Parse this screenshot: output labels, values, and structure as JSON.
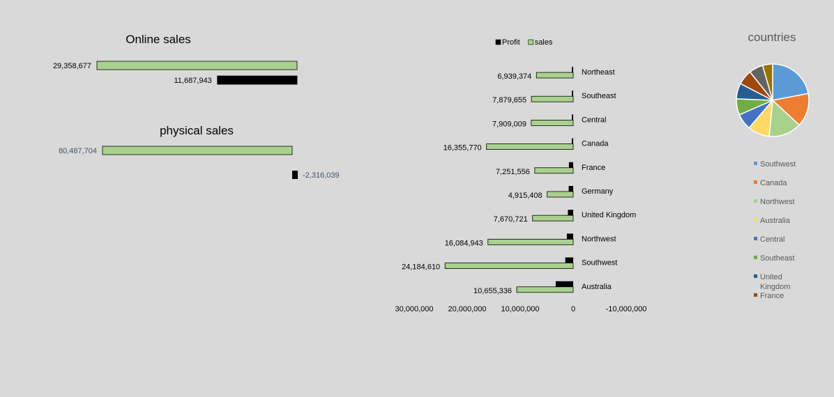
{
  "chart_data": [
    {
      "type": "bar",
      "orientation": "horizontal",
      "title": "Online sales",
      "values": [
        29358677,
        11687943
      ],
      "labels": [
        "29,358,677",
        "11,687,943"
      ],
      "colors": [
        "#a9d18e",
        "#000000"
      ],
      "xlim": [
        30000000,
        0
      ]
    },
    {
      "type": "bar",
      "orientation": "horizontal",
      "title": "physical sales",
      "values": [
        80487704,
        -2316039
      ],
      "labels": [
        "80,487,704",
        "-2,316,039"
      ],
      "colors": [
        "#a9d18e",
        "#000000"
      ],
      "xlim": [
        80000000,
        -2316039
      ]
    },
    {
      "type": "bar",
      "orientation": "horizontal",
      "categories": [
        "Northeast",
        "Southeast",
        "Central",
        "Canada",
        "France",
        "Germany",
        "United Kingdom",
        "Northwest",
        "Southwest",
        "Australia"
      ],
      "series": [
        {
          "name": "Profit",
          "color": "#000000",
          "values": [
            150000,
            150000,
            150000,
            200000,
            800000,
            850000,
            1000000,
            1200000,
            1500000,
            3300000
          ]
        },
        {
          "name": "sales",
          "color": "#a9d18e",
          "values": [
            6939374,
            7879655,
            7909009,
            16355770,
            7251556,
            4915408,
            7670721,
            16084943,
            24184610,
            10655336
          ],
          "labels": [
            "6,939,374",
            "7,879,655",
            "7,909,009",
            "16,355,770",
            "7,251,556",
            "4,915,408",
            "7,670,721",
            "16,084,943",
            "24,184,610",
            "10,655,336"
          ]
        }
      ],
      "xlim": [
        30000000,
        -10000000
      ],
      "xticks": [
        30000000,
        20000000,
        10000000,
        0,
        -10000000
      ],
      "xtick_labels": [
        "30,000,000",
        "20,000,000",
        "10,000,000",
        "0",
        "-10,000,000"
      ],
      "legend": "top",
      "grid": false
    },
    {
      "type": "pie",
      "title": "countries",
      "slices": [
        {
          "name": "Southwest",
          "value": 24.2,
          "color": "#5b9bd5"
        },
        {
          "name": "Canada",
          "value": 16.4,
          "color": "#ed7d31"
        },
        {
          "name": "Northwest",
          "value": 16.1,
          "color": "#a9d18e"
        },
        {
          "name": "Australia",
          "value": 10.7,
          "color": "#ffd966"
        },
        {
          "name": "Central",
          "value": 7.9,
          "color": "#4472c4"
        },
        {
          "name": "Southeast",
          "value": 7.9,
          "color": "#70ad47"
        },
        {
          "name": "United Kingdom",
          "value": 7.7,
          "color": "#255e91"
        },
        {
          "name": "France",
          "value": 7.3,
          "color": "#9e480e"
        },
        {
          "name": "",
          "value": 6.9,
          "color": "#636363"
        },
        {
          "name": "",
          "value": 4.9,
          "color": "#997300"
        }
      ],
      "legend_entries": [
        "Southwest",
        "Canada",
        "Northwest",
        "Australia",
        "Central",
        "Southeast",
        "United Kingdom",
        "France"
      ],
      "legend": "bottom"
    }
  ]
}
